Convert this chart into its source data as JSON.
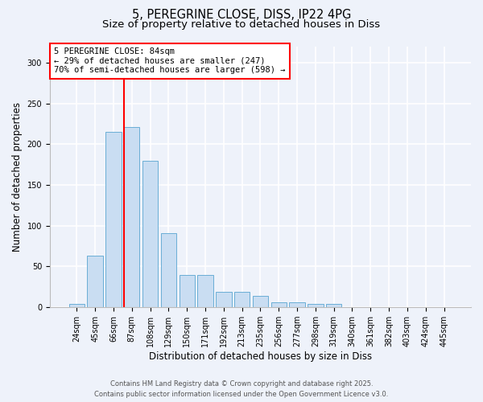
{
  "title_line1": "5, PEREGRINE CLOSE, DISS, IP22 4PG",
  "title_line2": "Size of property relative to detached houses in Diss",
  "xlabel": "Distribution of detached houses by size in Diss",
  "ylabel": "Number of detached properties",
  "categories": [
    "24sqm",
    "45sqm",
    "66sqm",
    "87sqm",
    "108sqm",
    "129sqm",
    "150sqm",
    "171sqm",
    "192sqm",
    "213sqm",
    "235sqm",
    "256sqm",
    "277sqm",
    "298sqm",
    "319sqm",
    "340sqm",
    "361sqm",
    "382sqm",
    "403sqm",
    "424sqm",
    "445sqm"
  ],
  "values": [
    4,
    63,
    215,
    221,
    180,
    91,
    40,
    40,
    19,
    19,
    14,
    6,
    6,
    4,
    4,
    0,
    0,
    0,
    0,
    0,
    0
  ],
  "bar_color": "#c9ddf2",
  "bar_edge_color": "#6aaed6",
  "vline_color": "red",
  "vline_index": 3,
  "annotation_text": "5 PEREGRINE CLOSE: 84sqm\n← 29% of detached houses are smaller (247)\n70% of semi-detached houses are larger (598) →",
  "annotation_box_color": "white",
  "annotation_box_edge": "red",
  "ylim": [
    0,
    320
  ],
  "yticks": [
    0,
    50,
    100,
    150,
    200,
    250,
    300
  ],
  "background_color": "#eef2fa",
  "grid_color": "white",
  "footer_line1": "Contains HM Land Registry data © Crown copyright and database right 2025.",
  "footer_line2": "Contains public sector information licensed under the Open Government Licence v3.0.",
  "title_fontsize": 10.5,
  "subtitle_fontsize": 9.5,
  "axis_label_fontsize": 8.5,
  "tick_fontsize": 7,
  "annotation_fontsize": 7.5,
  "footer_fontsize": 6
}
